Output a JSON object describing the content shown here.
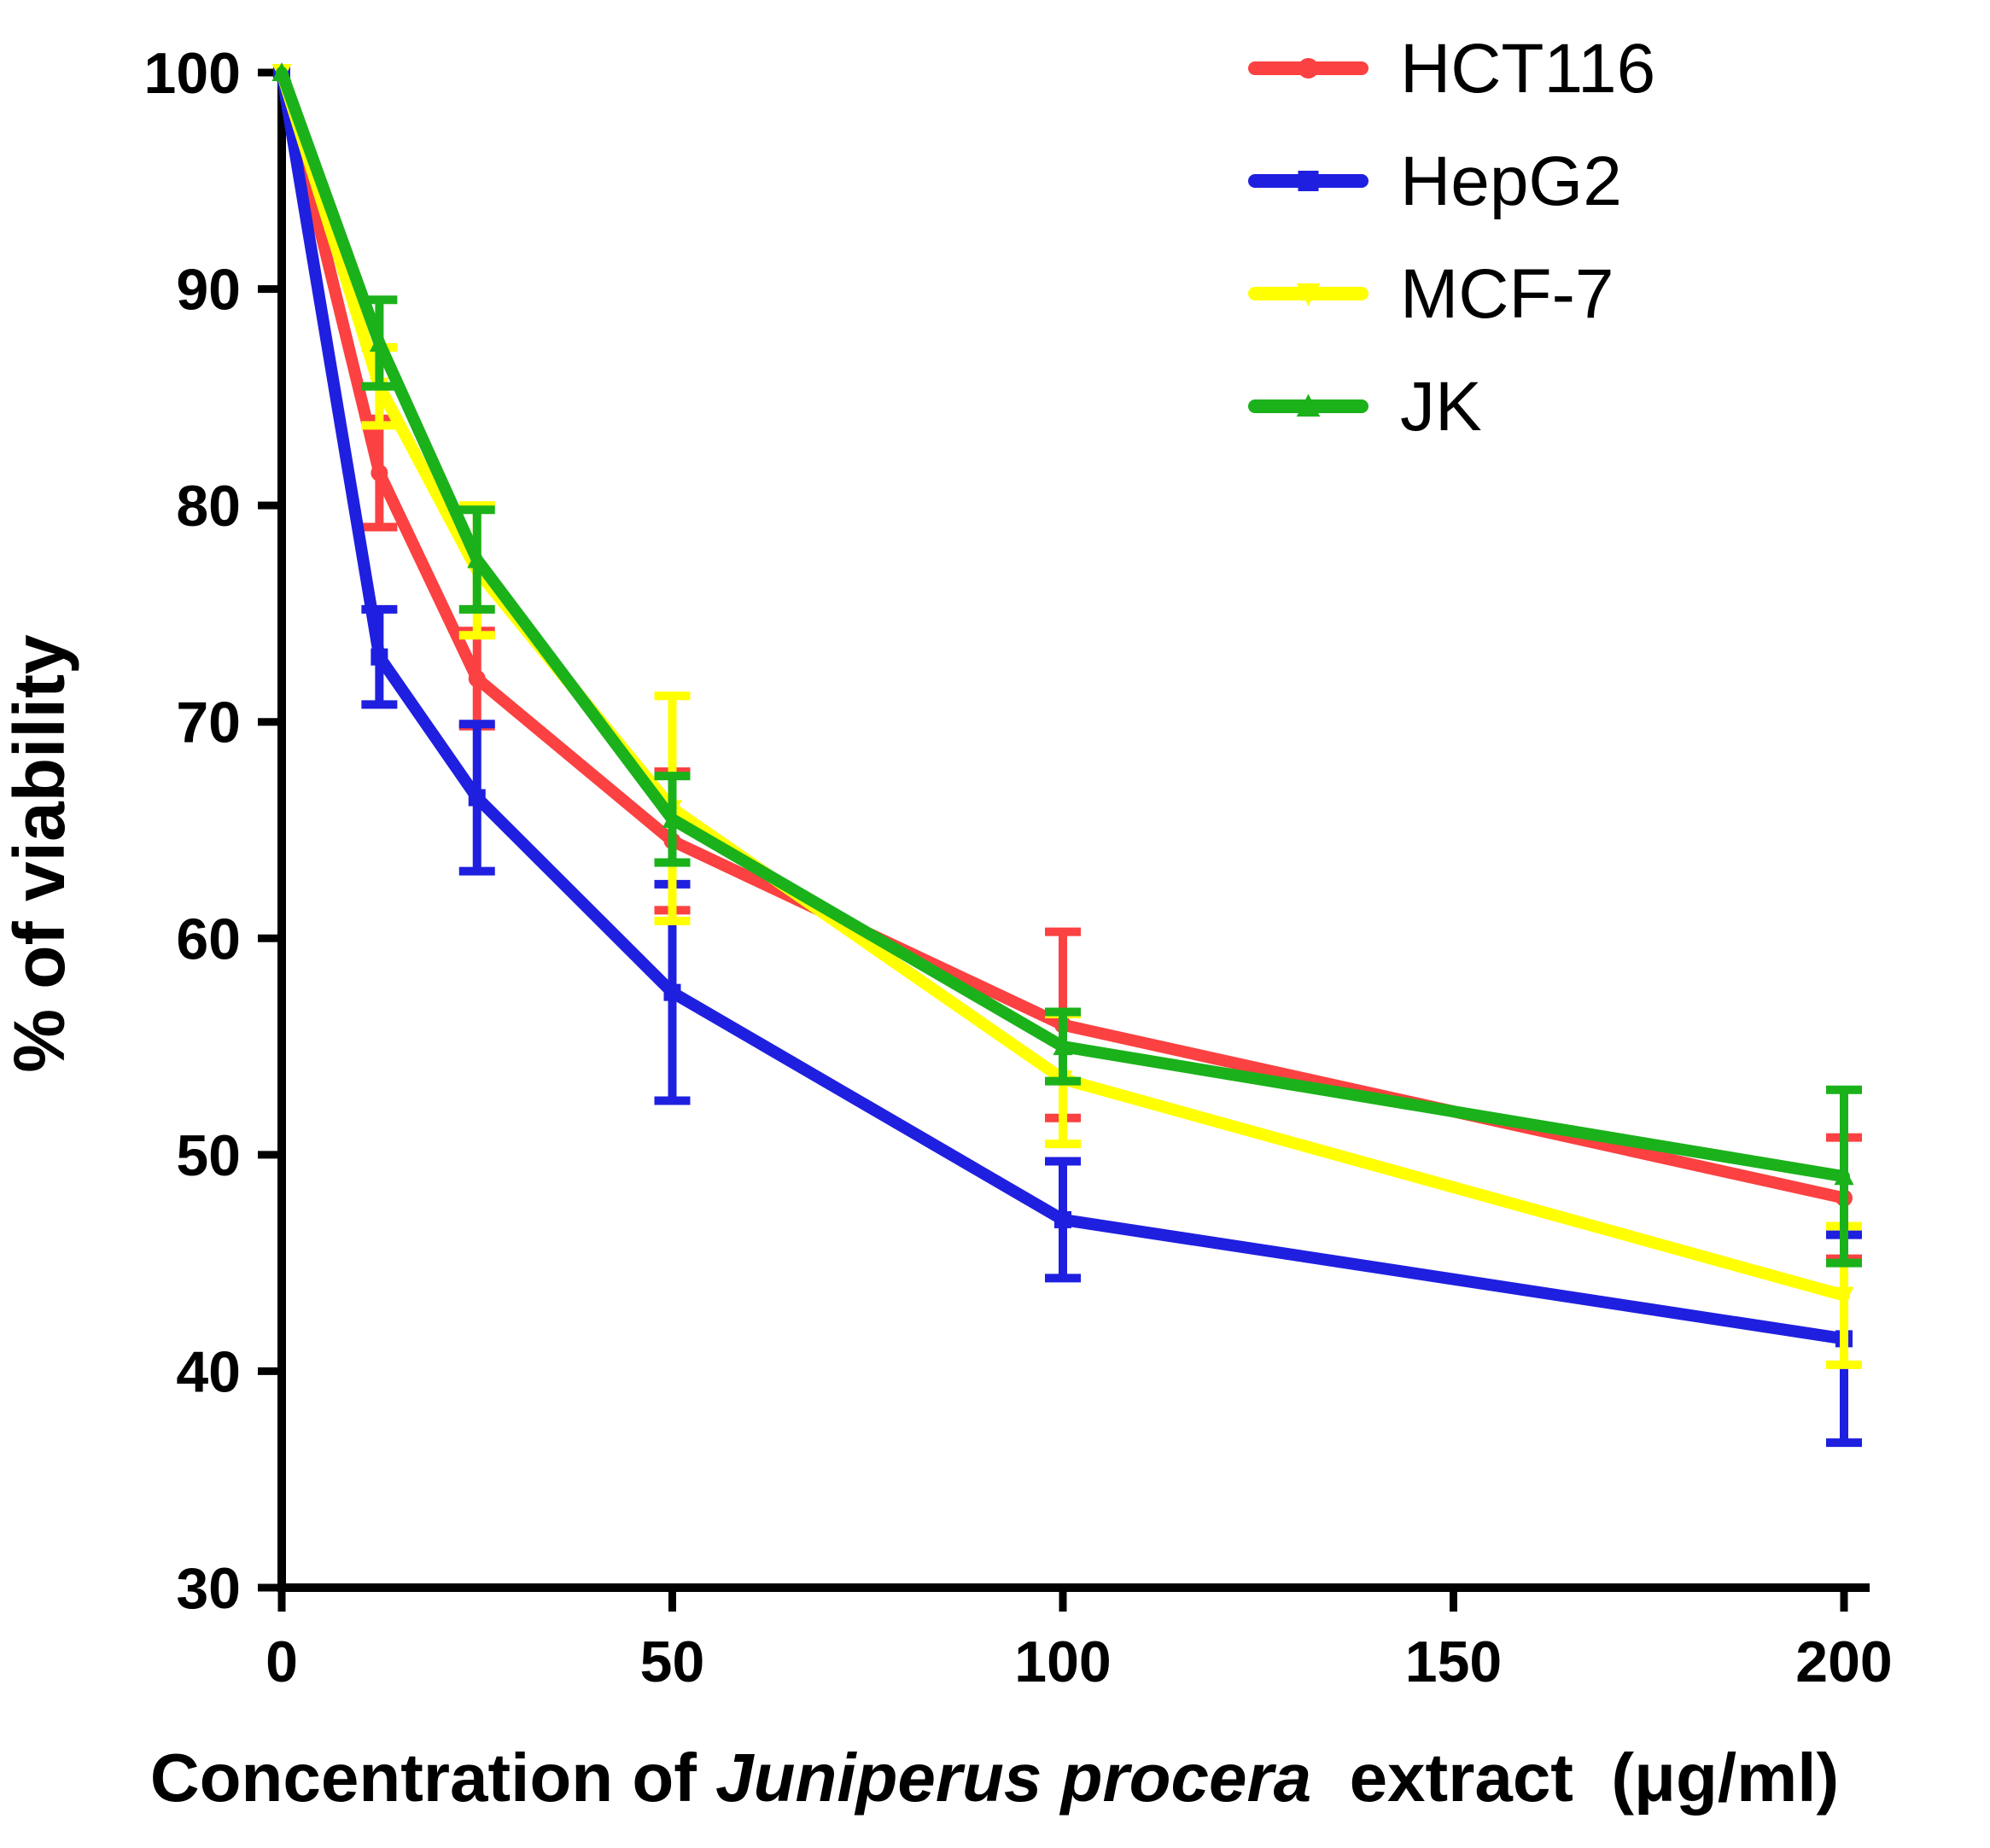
{
  "chart_data": {
    "type": "line",
    "x": [
      0,
      12.5,
      25,
      50,
      100,
      200
    ],
    "series": [
      {
        "name": "HCT116",
        "color": "#fb4141",
        "marker": "circle",
        "values": [
          100,
          81.5,
          72,
          64.5,
          56,
          48
        ],
        "errors": [
          0,
          2.5,
          2.2,
          3.2,
          4.3,
          2.8
        ]
      },
      {
        "name": "HepG2",
        "color": "#1f1fe0",
        "marker": "square",
        "values": [
          100,
          73,
          66.5,
          57.5,
          47,
          41.5
        ],
        "errors": [
          0,
          2.2,
          3.4,
          5,
          2.7,
          4.8
        ]
      },
      {
        "name": "MCF-7",
        "color": "#ffff00",
        "marker": "triangle-down",
        "values": [
          100,
          85.5,
          77,
          66,
          53.5,
          43.5
        ],
        "errors": [
          0,
          1.8,
          3,
          5.2,
          3,
          3.2
        ]
      },
      {
        "name": "JK",
        "color": "#1bb11b",
        "marker": "triangle-up",
        "values": [
          100,
          87.5,
          77.5,
          65.5,
          55,
          49
        ],
        "errors": [
          0,
          2,
          2.3,
          2,
          1.6,
          4
        ]
      }
    ],
    "title": "",
    "xlabel": {
      "prefix": "Concentration of ",
      "italic": "Juniperus procera",
      "suffix": "  extract  (μg/ml)"
    },
    "ylabel": "% of viability",
    "x_ticks": [
      0,
      50,
      100,
      150,
      200
    ],
    "y_ticks": [
      30,
      40,
      50,
      60,
      70,
      80,
      90,
      100
    ],
    "xlim": [
      0,
      200
    ],
    "ylim": [
      30,
      100
    ],
    "grid": false,
    "legend_position": "top-right"
  },
  "colors": {
    "axis": "#000000",
    "background": "#ffffff"
  }
}
